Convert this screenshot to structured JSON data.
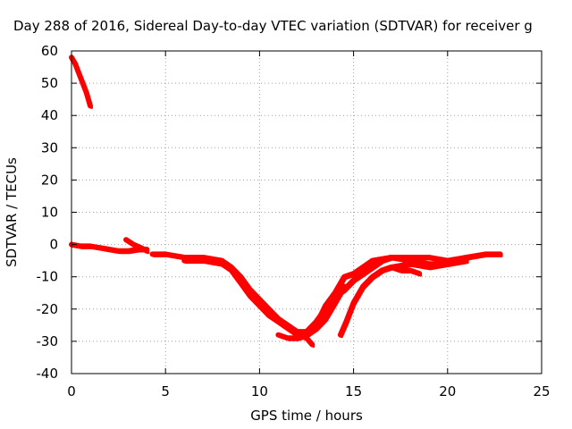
{
  "chart_data": {
    "type": "line",
    "title": "Day 288 of 2016, Sidereal Day-to-day VTEC variation (SDTVAR) for receiver g",
    "xlabel": "GPS time / hours",
    "ylabel": "SDTVAR / TECUs",
    "xlim": [
      0,
      25
    ],
    "ylim": [
      -40,
      60
    ],
    "xticks": [
      0,
      5,
      10,
      15,
      20,
      25
    ],
    "yticks": [
      -40,
      -30,
      -20,
      -10,
      0,
      10,
      20,
      30,
      40,
      50,
      60
    ],
    "xtick_labels": [
      "0",
      "5",
      "10",
      "15",
      "20",
      "25"
    ],
    "ytick_labels": [
      "-40",
      "-30",
      "-20",
      "-10",
      "0",
      "10",
      "20",
      "30",
      "40",
      "50",
      "60"
    ],
    "grid": true,
    "color": "#ff0000",
    "series": [
      {
        "name": "segment-1",
        "x": [
          0.0,
          0.2,
          0.4,
          0.6,
          0.8,
          1.0
        ],
        "y": [
          58,
          56,
          53,
          50,
          47,
          43
        ]
      },
      {
        "name": "segment-2",
        "x": [
          0.0,
          0.5,
          1.0,
          1.5,
          2.0,
          2.5,
          3.0,
          3.5,
          4.0
        ],
        "y": [
          0,
          -0.5,
          -0.5,
          -1,
          -1.5,
          -2,
          -2,
          -1.5,
          -1.5
        ]
      },
      {
        "name": "segment-3",
        "x": [
          2.9,
          3.3,
          3.7,
          4.0
        ],
        "y": [
          1.5,
          0,
          -1,
          -2
        ]
      },
      {
        "name": "segment-4",
        "x": [
          4.3,
          5.0,
          6.0,
          7.0,
          8.0,
          8.5,
          9.0,
          9.5,
          10.0,
          10.5,
          11.0,
          11.5,
          12.0,
          12.5,
          13.0,
          13.5,
          14.0,
          14.5,
          15.0,
          16.0,
          17.0,
          18.0,
          19.0,
          20.0,
          21.0,
          22.0,
          22.8
        ],
        "y": [
          -3,
          -3,
          -4,
          -4,
          -5,
          -7,
          -10,
          -14,
          -17,
          -20,
          -23,
          -25,
          -27,
          -27,
          -25,
          -19,
          -15,
          -10,
          -9,
          -5,
          -4,
          -4,
          -4,
          -5,
          -4,
          -3,
          -3
        ]
      },
      {
        "name": "segment-5",
        "x": [
          6.0,
          7.0,
          8.0,
          8.5,
          9.0,
          9.5,
          10.0,
          10.5,
          11.0,
          11.5,
          12.0,
          12.5,
          12.8
        ],
        "y": [
          -5,
          -5,
          -6,
          -8,
          -12,
          -16,
          -19,
          -22,
          -24,
          -26,
          -28,
          -29,
          -31
        ]
      },
      {
        "name": "segment-6",
        "x": [
          11.0,
          11.5,
          12.0,
          12.5,
          13.0,
          13.5,
          14.0,
          14.5
        ],
        "y": [
          -28,
          -29,
          -29,
          -28,
          -26,
          -23,
          -18,
          -13
        ]
      },
      {
        "name": "segment-7",
        "x": [
          12.5,
          13.0,
          13.5,
          14.0,
          14.5,
          15.0,
          15.5,
          16.0,
          16.5,
          17.0,
          18.0,
          19.0,
          20.0,
          21.0
        ],
        "y": [
          -27,
          -24,
          -20,
          -16,
          -14,
          -11,
          -9,
          -7,
          -5,
          -4,
          -5,
          -6,
          -6,
          -5
        ]
      },
      {
        "name": "segment-8",
        "x": [
          14.3,
          14.6,
          15.0,
          15.5,
          16.0,
          16.5,
          17.0,
          18.0,
          19.0,
          20.0
        ],
        "y": [
          -28,
          -24,
          -18,
          -13,
          -10,
          -8,
          -7,
          -6,
          -7,
          -6
        ]
      },
      {
        "name": "segment-9",
        "x": [
          17.0,
          17.5,
          18.0,
          18.5
        ],
        "y": [
          -7,
          -8,
          -8,
          -9
        ]
      }
    ]
  }
}
